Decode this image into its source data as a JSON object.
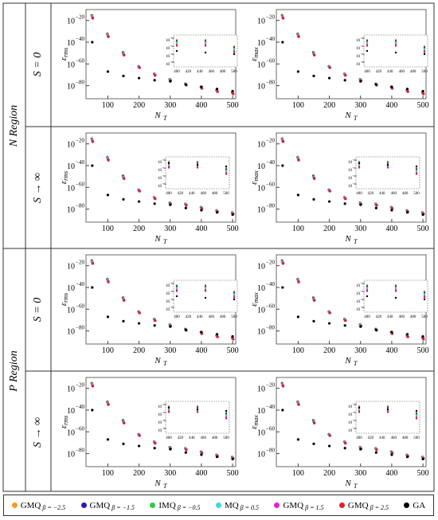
{
  "regions": [
    "N Region",
    "P Region"
  ],
  "s_labels": [
    "S = 0",
    "S → ∞"
  ],
  "x_axis_label": "N",
  "x_axis_label_sub": "T",
  "y_label_main": "ε",
  "y_label_subs": [
    "rms",
    "max"
  ],
  "colors": {
    "GMQ_-2.5": "#f59a23",
    "GMQ_-1.5": "#1f1fb4",
    "IMQ_-0.5": "#2ecc40",
    "MQ_0.5": "#39d8e0",
    "GMQ_1.5": "#e020e0",
    "GMQ_2.5": "#e0202a",
    "GA": "#000000"
  },
  "legend": [
    {
      "key": "GMQ_-2.5",
      "name": "GMQ",
      "sub": "β = −2.5"
    },
    {
      "key": "GMQ_-1.5",
      "name": "GMQ",
      "sub": "β = −1.5"
    },
    {
      "key": "IMQ_-0.5",
      "name": "IMQ",
      "sub": "β = −0.5"
    },
    {
      "key": "MQ_0.5",
      "name": "MQ",
      "sub": "β = 0.5"
    },
    {
      "key": "GMQ_1.5",
      "name": "GMQ",
      "sub": "β = 1.5"
    },
    {
      "key": "GMQ_2.5",
      "name": "GMQ",
      "sub": "β = 2.5"
    },
    {
      "key": "GA",
      "name": "GA",
      "sub": ""
    }
  ],
  "chart_data": {
    "type": "scatter",
    "y_scale": "log",
    "x_ticks": [
      100,
      200,
      300,
      400,
      500
    ],
    "y_ticks": [
      -20,
      -40,
      -60,
      -80
    ],
    "y_tick_labels": [
      "10",
      "10",
      "10",
      "10"
    ],
    "y_tick_exponents": [
      "−20",
      "−40",
      "−60",
      "−80"
    ],
    "xlim": [
      30,
      510
    ],
    "ylim_log10": [
      -92,
      -10
    ],
    "x": [
      50,
      100,
      150,
      200,
      250,
      300,
      350,
      400,
      450,
      500
    ],
    "series_log10": {
      "rbf": [
        -17,
        -34,
        -51,
        -63,
        -70,
        -75,
        -79,
        -82,
        -85,
        -87
      ],
      "GA": [
        -40,
        -67,
        -71,
        -73,
        -75,
        -76,
        -79,
        -81,
        -83,
        -85
      ]
    },
    "inset": {
      "x_ticks": [
        "400",
        "420",
        "440",
        "460",
        "480",
        "500"
      ],
      "y_tick_exponents": [
        "−80",
        "−82",
        "−84",
        "−86",
        "−88"
      ],
      "x": [
        400,
        450,
        500
      ]
    }
  }
}
